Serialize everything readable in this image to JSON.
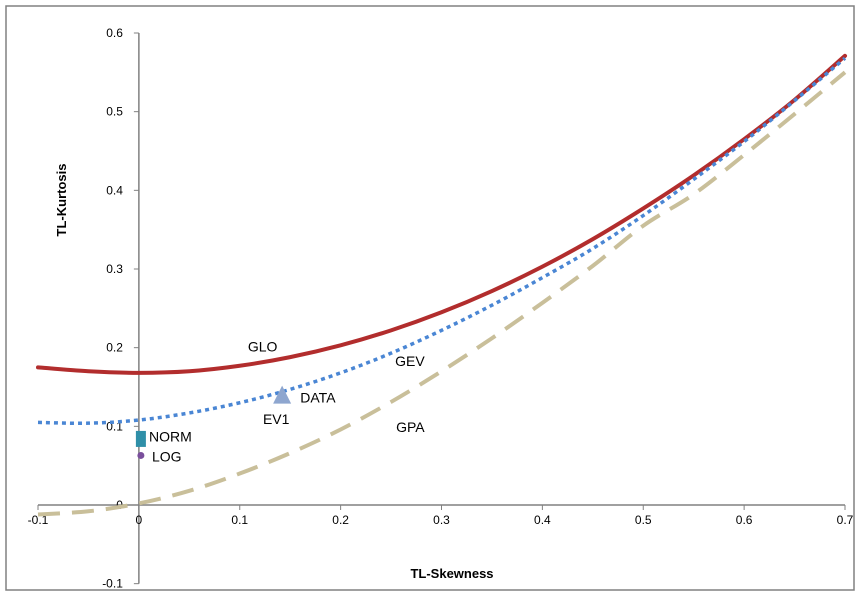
{
  "chart_data": {
    "type": "line",
    "xlabel": "TL-Skewness",
    "ylabel": "TL-Kurtosis",
    "xlim": [
      -0.1,
      0.7
    ],
    "ylim": [
      -0.1,
      0.6
    ],
    "x_ticks": [
      "-0.1",
      "0",
      "0.1",
      "0.2",
      "0.3",
      "0.4",
      "0.5",
      "0.6",
      "0.7"
    ],
    "y_ticks": [
      "-0.1",
      "0",
      "0.1",
      "0.2",
      "0.3",
      "0.4",
      "0.5",
      "0.6"
    ],
    "grid": false,
    "legend": "none",
    "series": [
      {
        "label": "GLO",
        "color": "#b22d2d",
        "style": "solid",
        "x": [
          -0.1,
          -0.05,
          0.0,
          0.05,
          0.1,
          0.15,
          0.2,
          0.25,
          0.3,
          0.35,
          0.4,
          0.45,
          0.5,
          0.55,
          0.6,
          0.65,
          0.7
        ],
        "y": [
          0.175,
          0.17,
          0.168,
          0.17,
          0.177,
          0.188,
          0.203,
          0.222,
          0.245,
          0.272,
          0.303,
          0.338,
          0.377,
          0.419,
          0.465,
          0.515,
          0.571
        ]
      },
      {
        "label": "GEV",
        "color": "#4a86d4",
        "style": "dotted",
        "x": [
          -0.1,
          -0.05,
          0.0,
          0.05,
          0.1,
          0.15,
          0.2,
          0.25,
          0.3,
          0.35,
          0.4,
          0.45,
          0.5,
          0.55,
          0.6,
          0.65,
          0.7
        ],
        "y": [
          0.105,
          0.104,
          0.108,
          0.117,
          0.13,
          0.147,
          0.168,
          0.193,
          0.222,
          0.254,
          0.289,
          0.326,
          0.368,
          0.414,
          0.462,
          0.514,
          0.568
        ]
      },
      {
        "label": "GPA",
        "color": "#c9bf9a",
        "style": "dashed",
        "x": [
          -0.1,
          -0.05,
          0.0,
          0.05,
          0.1,
          0.15,
          0.2,
          0.25,
          0.3,
          0.35,
          0.4,
          0.45,
          0.5,
          0.55,
          0.6,
          0.65,
          0.7
        ],
        "y": [
          -0.012,
          -0.008,
          0.002,
          0.018,
          0.04,
          0.066,
          0.096,
          0.131,
          0.17,
          0.212,
          0.257,
          0.304,
          0.355,
          0.395,
          0.445,
          0.497,
          0.55
        ]
      }
    ],
    "points": [
      {
        "label": "DATA",
        "x": 0.142,
        "y": 0.139,
        "marker": "triangle",
        "color": "#8ea6cf"
      },
      {
        "label": "NORM",
        "x": 0.002,
        "y": 0.084,
        "marker": "square",
        "color": "#2f8fa8"
      },
      {
        "label": "LOG",
        "x": 0.002,
        "y": 0.063,
        "marker": "circle",
        "color": "#7a4f9c"
      }
    ],
    "annotations": [
      {
        "text": "GLO",
        "x": 0.108,
        "y": 0.195
      },
      {
        "text": "GEV",
        "x": 0.254,
        "y": 0.177
      },
      {
        "text": "DATA",
        "x": 0.16,
        "y": 0.13
      },
      {
        "text": "EV1",
        "x": 0.123,
        "y": 0.103
      },
      {
        "text": "GPA",
        "x": 0.255,
        "y": 0.093
      },
      {
        "text": "NORM",
        "x": 0.01,
        "y": 0.081
      },
      {
        "text": "LOG",
        "x": 0.013,
        "y": 0.055
      }
    ]
  }
}
